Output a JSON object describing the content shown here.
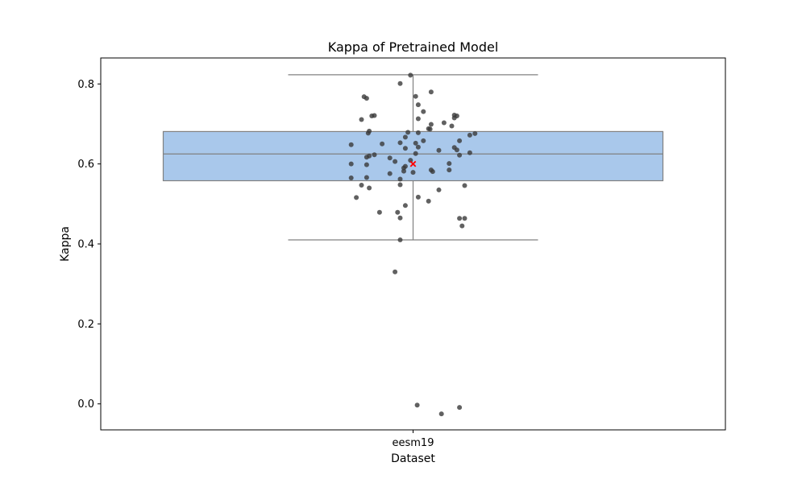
{
  "chart_data": {
    "type": "box",
    "title": "Kappa of Pretrained Model",
    "xlabel": "Dataset",
    "ylabel": "Kappa",
    "categories": [
      "eesm19"
    ],
    "ylim": [
      -0.065,
      0.865
    ],
    "yticks": [
      0.0,
      0.2,
      0.4,
      0.6,
      0.8
    ],
    "ytick_labels": [
      "0.0",
      "0.2",
      "0.4",
      "0.6",
      "0.8"
    ],
    "grid": false,
    "box": {
      "category": "eesm19",
      "q1": 0.558,
      "median": 0.625,
      "q3": 0.681,
      "whisker_low": 0.41,
      "whisker_high": 0.823,
      "mean": 0.6,
      "fill": "#a9c8eb",
      "line_color": "#808080",
      "mean_color": "#ff0000"
    },
    "point_color": "#3a3a3a",
    "points": [
      {
        "x": -0.005,
        "y": 0.822
      },
      {
        "x": -0.025,
        "y": 0.801
      },
      {
        "x": 0.035,
        "y": 0.78
      },
      {
        "x": -0.095,
        "y": 0.768
      },
      {
        "x": -0.09,
        "y": 0.764
      },
      {
        "x": 0.005,
        "y": 0.769
      },
      {
        "x": 0.01,
        "y": 0.748
      },
      {
        "x": 0.02,
        "y": 0.731
      },
      {
        "x": -0.075,
        "y": 0.721
      },
      {
        "x": -0.08,
        "y": 0.72
      },
      {
        "x": 0.08,
        "y": 0.722
      },
      {
        "x": 0.085,
        "y": 0.72
      },
      {
        "x": 0.08,
        "y": 0.715
      },
      {
        "x": -0.1,
        "y": 0.711
      },
      {
        "x": 0.01,
        "y": 0.713
      },
      {
        "x": 0.06,
        "y": 0.703
      },
      {
        "x": 0.035,
        "y": 0.699
      },
      {
        "x": 0.075,
        "y": 0.695
      },
      {
        "x": 0.03,
        "y": 0.688
      },
      {
        "x": 0.033,
        "y": 0.687
      },
      {
        "x": -0.085,
        "y": 0.682
      },
      {
        "x": -0.087,
        "y": 0.677
      },
      {
        "x": -0.01,
        "y": 0.679
      },
      {
        "x": 0.01,
        "y": 0.678
      },
      {
        "x": 0.12,
        "y": 0.676
      },
      {
        "x": 0.11,
        "y": 0.672
      },
      {
        "x": -0.015,
        "y": 0.667
      },
      {
        "x": 0.02,
        "y": 0.658
      },
      {
        "x": 0.09,
        "y": 0.658
      },
      {
        "x": 0.005,
        "y": 0.652
      },
      {
        "x": -0.025,
        "y": 0.653
      },
      {
        "x": -0.06,
        "y": 0.65
      },
      {
        "x": -0.12,
        "y": 0.648
      },
      {
        "x": 0.01,
        "y": 0.642
      },
      {
        "x": -0.015,
        "y": 0.639
      },
      {
        "x": 0.08,
        "y": 0.641
      },
      {
        "x": 0.085,
        "y": 0.635
      },
      {
        "x": 0.05,
        "y": 0.634
      },
      {
        "x": 0.11,
        "y": 0.628
      },
      {
        "x": 0.09,
        "y": 0.622
      },
      {
        "x": 0.005,
        "y": 0.626
      },
      {
        "x": -0.075,
        "y": 0.623
      },
      {
        "x": -0.085,
        "y": 0.62
      },
      {
        "x": -0.09,
        "y": 0.617
      },
      {
        "x": -0.045,
        "y": 0.615
      },
      {
        "x": -0.035,
        "y": 0.606
      },
      {
        "x": -0.005,
        "y": 0.609
      },
      {
        "x": -0.12,
        "y": 0.6
      },
      {
        "x": -0.09,
        "y": 0.598
      },
      {
        "x": 0.07,
        "y": 0.601
      },
      {
        "x": -0.015,
        "y": 0.594
      },
      {
        "x": -0.018,
        "y": 0.59
      },
      {
        "x": 0.035,
        "y": 0.585
      },
      {
        "x": 0.07,
        "y": 0.585
      },
      {
        "x": 0.038,
        "y": 0.581
      },
      {
        "x": 0,
        "y": 0.579
      },
      {
        "x": -0.045,
        "y": 0.576
      },
      {
        "x": -0.018,
        "y": 0.582
      },
      {
        "x": -0.09,
        "y": 0.566
      },
      {
        "x": -0.12,
        "y": 0.565
      },
      {
        "x": -0.025,
        "y": 0.562
      },
      {
        "x": -0.1,
        "y": 0.547
      },
      {
        "x": -0.025,
        "y": 0.548
      },
      {
        "x": 0.1,
        "y": 0.546
      },
      {
        "x": -0.085,
        "y": 0.54
      },
      {
        "x": 0.05,
        "y": 0.535
      },
      {
        "x": -0.11,
        "y": 0.516
      },
      {
        "x": 0.01,
        "y": 0.517
      },
      {
        "x": 0.03,
        "y": 0.507
      },
      {
        "x": -0.015,
        "y": 0.496
      },
      {
        "x": -0.065,
        "y": 0.479
      },
      {
        "x": -0.03,
        "y": 0.479
      },
      {
        "x": -0.025,
        "y": 0.465
      },
      {
        "x": 0.09,
        "y": 0.464
      },
      {
        "x": 0.1,
        "y": 0.464
      },
      {
        "x": 0.095,
        "y": 0.445
      },
      {
        "x": -0.025,
        "y": 0.41
      },
      {
        "x": -0.035,
        "y": 0.33
      },
      {
        "x": 0.008,
        "y": -0.003
      },
      {
        "x": 0.09,
        "y": -0.009
      },
      {
        "x": 0.055,
        "y": -0.025
      }
    ]
  }
}
